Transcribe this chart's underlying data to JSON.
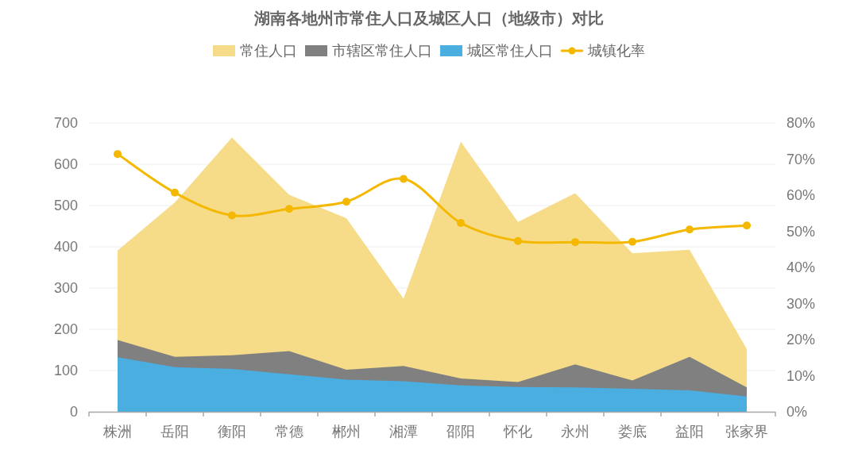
{
  "chart_data": {
    "type": "area",
    "title": "湖南各地州市常住人口及城区人口（地级市）对比",
    "categories": [
      "株洲",
      "岳阳",
      "衡阳",
      "常德",
      "郴州",
      "湘潭",
      "邵阳",
      "怀化",
      "永州",
      "娄底",
      "益阳",
      "张家界"
    ],
    "series": [
      {
        "name": "常住人口",
        "color": "#f6dc88",
        "values": [
          391,
          507,
          665,
          526,
          469,
          274,
          655,
          460,
          530,
          384,
          393,
          152
        ]
      },
      {
        "name": "市辖区常住人口",
        "color": "#808080",
        "values": [
          174,
          133,
          137,
          147,
          102,
          111,
          81,
          72,
          115,
          76,
          133,
          59
        ]
      },
      {
        "name": "城区常住人口",
        "color": "#4aaee0",
        "values": [
          132,
          108,
          104,
          91,
          78,
          74,
          64,
          60,
          59,
          56,
          52,
          37
        ]
      },
      {
        "name": "城镇化率",
        "type": "line",
        "axis": "y2",
        "marker": "circle",
        "color": "#f5b800",
        "values": [
          71.4,
          60.7,
          54.4,
          56.2,
          58.2,
          64.5,
          52.3,
          47.3,
          47.0,
          47.1,
          50.5,
          51.6
        ]
      }
    ],
    "ylim": [
      0,
      700
    ],
    "yticks": [
      0,
      100,
      200,
      300,
      400,
      500,
      600,
      700
    ],
    "y2lim": [
      0,
      80
    ],
    "y2ticks": [
      {
        "value": 0,
        "label": "0%"
      },
      {
        "value": 10,
        "label": "10%"
      },
      {
        "value": 20,
        "label": "20%"
      },
      {
        "value": 30,
        "label": "30%"
      },
      {
        "value": 40,
        "label": "40%"
      },
      {
        "value": 50,
        "label": "50%"
      },
      {
        "value": 60,
        "label": "60%"
      },
      {
        "value": 70,
        "label": "70%"
      },
      {
        "value": 80,
        "label": "80%"
      }
    ],
    "grid": "y",
    "legend": "top"
  }
}
